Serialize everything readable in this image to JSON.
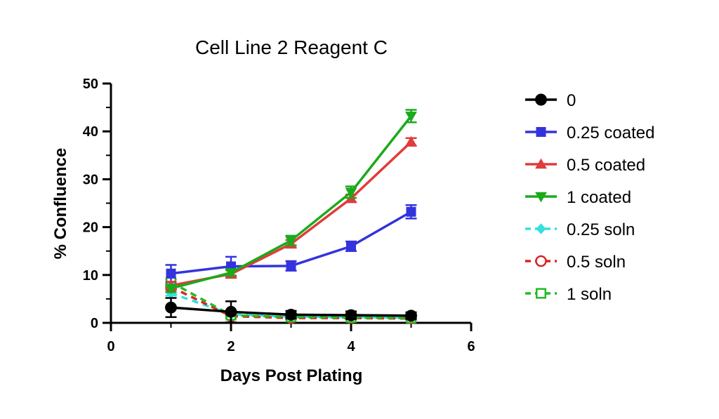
{
  "chart_data": {
    "type": "line",
    "title": "Cell Line 2 Reagent C",
    "xlabel": "Days Post Plating",
    "ylabel": "% Confluence",
    "xlim": [
      0,
      6
    ],
    "ylim": [
      0,
      50
    ],
    "x_ticks": [
      "0",
      "2",
      "4",
      "6"
    ],
    "y_ticks": [
      "0",
      "10",
      "20",
      "30",
      "40",
      "50"
    ],
    "grid": false,
    "legend_position": "right",
    "x": [
      1,
      2,
      3,
      4,
      5
    ],
    "series": [
      {
        "name": "0",
        "color": "#000000",
        "marker": "circle",
        "dashed": false,
        "values": [
          3.2,
          2.3,
          1.7,
          1.6,
          1.5
        ],
        "errors": [
          2.0,
          2.2,
          0.8,
          0.8,
          0.7
        ]
      },
      {
        "name": "0.25 coated",
        "color": "#3333dd",
        "marker": "square",
        "dashed": false,
        "values": [
          10.3,
          11.8,
          11.9,
          16.0,
          23.2
        ],
        "errors": [
          1.8,
          2.0,
          1.0,
          1.0,
          1.4
        ]
      },
      {
        "name": "0.5 coated",
        "color": "#e03c3c",
        "marker": "triangle-up",
        "dashed": false,
        "values": [
          7.8,
          10.2,
          16.5,
          26.0,
          37.8
        ],
        "errors": [
          0.8,
          0.8,
          0.8,
          0.8,
          0.8
        ]
      },
      {
        "name": "1 coated",
        "color": "#1aaa1a",
        "marker": "triangle-down",
        "dashed": false,
        "values": [
          7.2,
          10.5,
          17.2,
          27.3,
          43.2
        ],
        "errors": [
          0.8,
          0.6,
          1.0,
          1.2,
          1.3
        ]
      },
      {
        "name": "0.25 soln",
        "color": "#33e0e0",
        "marker": "diamond",
        "dashed": true,
        "values": [
          6.2,
          1.8,
          1.3,
          1.2,
          1.1
        ],
        "errors": [
          0.5,
          0.4,
          0.3,
          0.3,
          0.3
        ]
      },
      {
        "name": "0.5 soln",
        "color": "#dd2222",
        "marker": "circle-open",
        "dashed": true,
        "values": [
          7.5,
          1.4,
          1.0,
          1.0,
          0.9
        ],
        "errors": [
          0.6,
          0.4,
          0.3,
          0.3,
          0.3
        ]
      },
      {
        "name": "1 soln",
        "color": "#22bb22",
        "marker": "square-open",
        "dashed": true,
        "values": [
          8.5,
          1.6,
          1.2,
          1.1,
          1.0
        ],
        "errors": [
          0.6,
          0.4,
          0.3,
          0.3,
          0.3
        ]
      }
    ]
  }
}
